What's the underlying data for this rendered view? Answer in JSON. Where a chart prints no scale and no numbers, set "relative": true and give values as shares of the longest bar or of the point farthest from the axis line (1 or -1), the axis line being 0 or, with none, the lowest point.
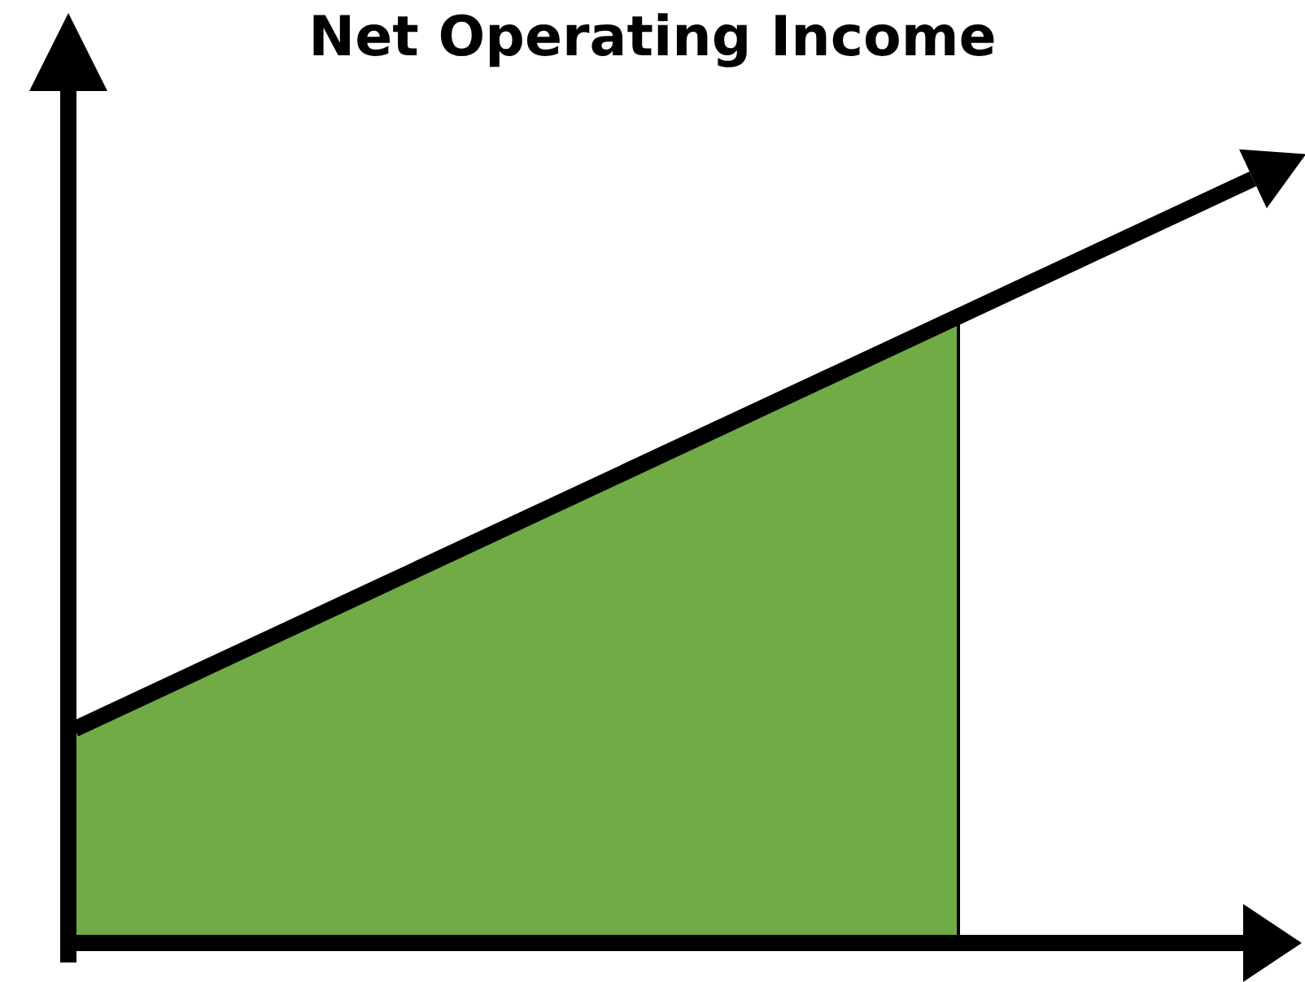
{
  "chart_data": {
    "type": "area",
    "title": "Net Operating Income",
    "relative": true,
    "categories": [
      null,
      null,
      null,
      null,
      null
    ],
    "series": [
      {
        "color": "#70ab46",
        "values": [
          0.28,
          0.46,
          0.64,
          0.82,
          null
        ]
      },
      {
        "type": "line",
        "color": "#000000",
        "values": [
          0.28,
          0.46,
          0.64,
          0.82,
          1
        ]
      }
    ]
  }
}
